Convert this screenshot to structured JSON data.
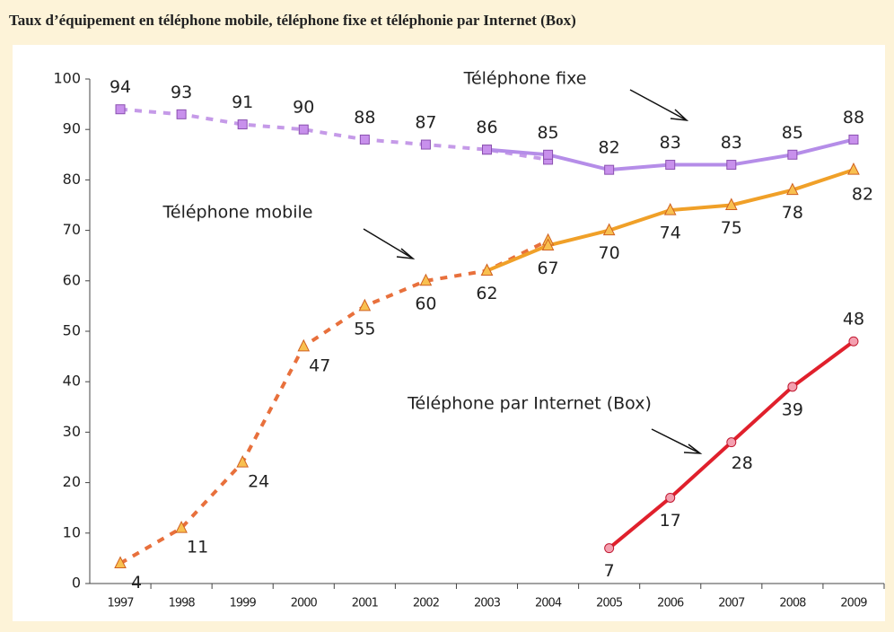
{
  "chart_data": {
    "type": "line",
    "title": "Taux d’équipement en téléphone mobile, téléphone fixe et téléphonie par Internet (Box)",
    "categories": [
      "1997",
      "1998",
      "1999",
      "2000",
      "2001",
      "2002",
      "2003",
      "2004",
      "2005",
      "2006",
      "2007",
      "2008",
      "2009"
    ],
    "ylim": [
      0,
      100
    ],
    "yticks": [
      0,
      10,
      20,
      30,
      40,
      50,
      60,
      70,
      80,
      90,
      100
    ],
    "series": [
      {
        "name": "Téléphone fixe",
        "color": "#b58de8",
        "dashed_color": "#c59ae8",
        "marker": "square",
        "values": [
          null,
          null,
          null,
          null,
          null,
          null,
          86,
          85,
          82,
          83,
          83,
          85,
          88
        ],
        "dashed_values": [
          94,
          93,
          91,
          90,
          88,
          87,
          86,
          84,
          null,
          null,
          null,
          null,
          null
        ]
      },
      {
        "name": "Téléphone mobile",
        "color": "#f0a028",
        "dashed_color": "#e8703c",
        "marker": "triangle",
        "values": [
          null,
          null,
          null,
          null,
          null,
          null,
          62,
          67,
          70,
          74,
          75,
          78,
          82
        ],
        "dashed_values": [
          4,
          11,
          24,
          47,
          55,
          60,
          62,
          68,
          null,
          null,
          null,
          null,
          null
        ]
      },
      {
        "name": "Téléphone par Internet (Box)",
        "color": "#e0202c",
        "marker": "circle",
        "values": [
          null,
          null,
          null,
          null,
          null,
          null,
          null,
          null,
          7,
          17,
          28,
          39,
          48
        ]
      }
    ]
  }
}
